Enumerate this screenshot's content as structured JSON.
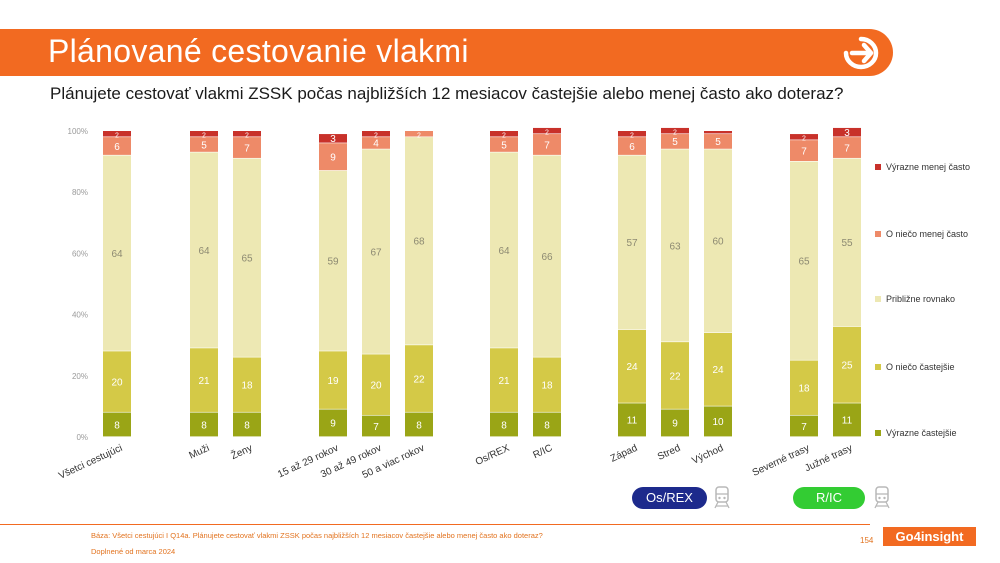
{
  "header": {
    "title": "Plánované cestovanie vlakmi",
    "question": "Plánujete cestovať vlakmi ZSSK počas najbližších 12 mesiacov častejšie alebo menej často ako doteraz?"
  },
  "colors": {
    "accent": "#f26a21",
    "badge_os": "#1d2a8c",
    "badge_ric": "#33cc33"
  },
  "chart_data": {
    "type": "bar",
    "stacked": true,
    "percent_stacked": true,
    "ylim": [
      0,
      100
    ],
    "yticks": [
      "0%",
      "20%",
      "40%",
      "60%",
      "80%",
      "100%"
    ],
    "grid": false,
    "legend_position": "right",
    "categories": [
      "Všetci cestujúci",
      "Muži",
      "Ženy",
      "15 až 29 rokov",
      "30 až 49 rokov",
      "50 a viac rokov",
      "Os/REX",
      "R/IC",
      "Západ",
      "Stred",
      "Východ",
      "Severné trasy",
      "Južné trasy"
    ],
    "series": [
      {
        "name": "Výrazne častejšie",
        "color": "#9aa516",
        "values": [
          8,
          8,
          8,
          9,
          7,
          8,
          8,
          8,
          11,
          9,
          10,
          7,
          11
        ]
      },
      {
        "name": "O niečo častejšie",
        "color": "#d4c947",
        "values": [
          20,
          21,
          18,
          19,
          20,
          22,
          21,
          18,
          24,
          22,
          24,
          18,
          25
        ]
      },
      {
        "name": "Približne rovnako",
        "color": "#ede8b3",
        "values": [
          64,
          64,
          65,
          59,
          67,
          68,
          64,
          66,
          57,
          63,
          60,
          65,
          55
        ]
      },
      {
        "name": "O niečo menej často",
        "color": "#ee8a68",
        "values": [
          6,
          5,
          7,
          9,
          4,
          2,
          5,
          7,
          6,
          5,
          5,
          7,
          7
        ]
      },
      {
        "name": "Výrazne menej často",
        "color": "#c8312a",
        "values": [
          2,
          2,
          2,
          3,
          2,
          null,
          2,
          2,
          2,
          2,
          1,
          2,
          3
        ]
      }
    ]
  },
  "badges": {
    "os_rex": "Os/REX",
    "r_ic": "R/IC"
  },
  "footer": {
    "note_line1": "Báza: Všetci cestujúci I Q14a. Plánujete cestovať vlakmi ZSSK počas najbližších 12 mesiacov častejšie alebo menej často ako doteraz?",
    "note_line2": "Doplnené od marca 2024",
    "page_number": "154",
    "brand": "Go4insight"
  }
}
